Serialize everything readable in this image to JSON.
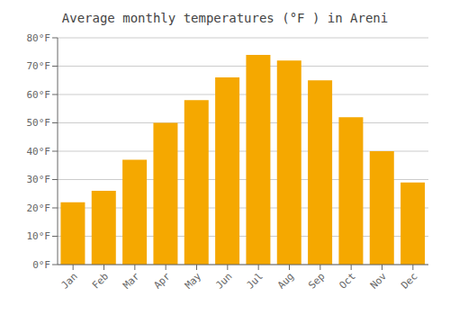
{
  "chart_data": {
    "type": "bar",
    "title": "Average monthly temperatures (°F ) in Areni",
    "categories": [
      "Jan",
      "Feb",
      "Mar",
      "Apr",
      "May",
      "Jun",
      "Jul",
      "Aug",
      "Sep",
      "Oct",
      "Nov",
      "Dec"
    ],
    "values": [
      22,
      26,
      37,
      50,
      58,
      66,
      74,
      72,
      65,
      52,
      40,
      29
    ],
    "color": "#F5A800",
    "ylim": [
      0,
      80
    ],
    "yticks": [
      {
        "value": 0,
        "label": "0°F"
      },
      {
        "value": 10,
        "label": "10°F"
      },
      {
        "value": 20,
        "label": "20°F"
      },
      {
        "value": 30,
        "label": "30°F"
      },
      {
        "value": 40,
        "label": "40°F"
      },
      {
        "value": 50,
        "label": "50°F"
      },
      {
        "value": 60,
        "label": "60°F"
      },
      {
        "value": 70,
        "label": "70°F"
      },
      {
        "value": 80,
        "label": "80°F"
      }
    ],
    "grid": true
  }
}
